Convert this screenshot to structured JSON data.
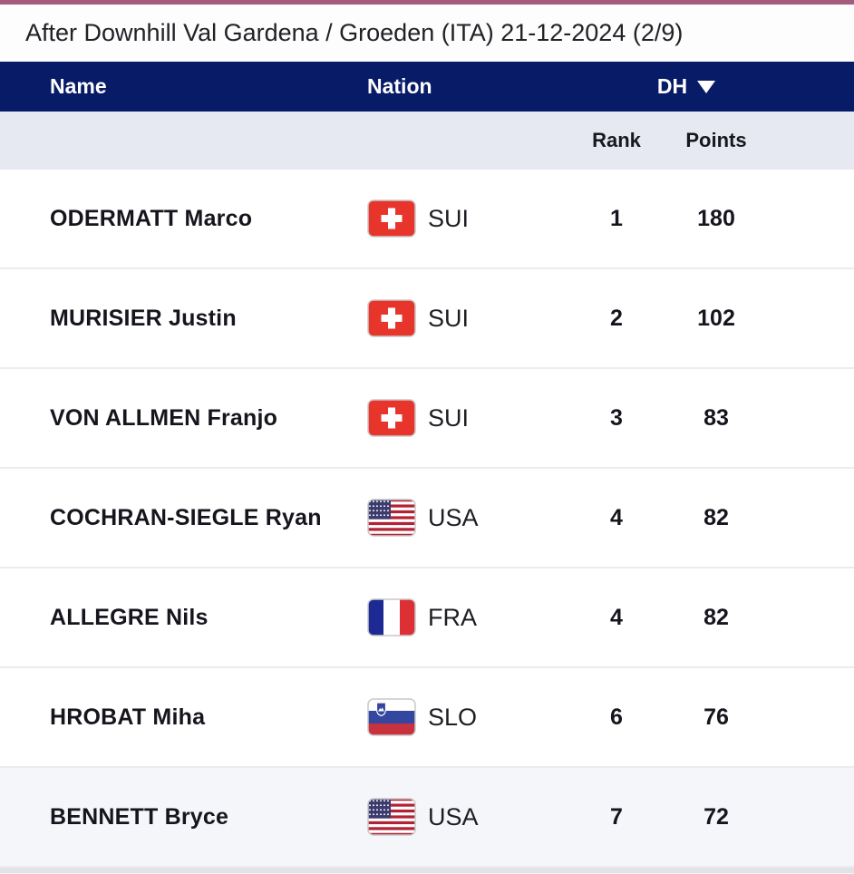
{
  "colors": {
    "accent_bar": "#a55b7b",
    "header_bg": "#081b67",
    "header_text": "#ffffff",
    "subheader_bg": "#e6e8f2",
    "row_border": "#ececee",
    "highlight_row_bg": "#f5f6fa",
    "text_dark": "#15151d",
    "title_bg": "#fdfdfd",
    "bottom_strip": "#e1e3e7",
    "bottom_strip_light": "#f3f4f6",
    "flag_border": "#c9c9c9",
    "sui_red": "#e8352b",
    "usa_stripe_red": "#b22234",
    "usa_canton_blue": "#3c3b6e",
    "fra_blue": "#1e2a93",
    "fra_red": "#dd3034",
    "slo_blue": "#3447a0",
    "slo_red": "#c8313e"
  },
  "title": "After Downhill Val Gardena / Groeden (ITA) 21-12-2024 (2/9)",
  "table": {
    "columns": {
      "name": "Name",
      "nation": "Nation",
      "dh": "DH"
    },
    "sort_icon": "triangle-down",
    "subcolumns": {
      "rank": "Rank",
      "points": "Points"
    },
    "rows": [
      {
        "name": "ODERMATT Marco",
        "nation": "SUI",
        "flag_icon": "flag-sui",
        "rank": "1",
        "points": "180",
        "highlighted": false
      },
      {
        "name": "MURISIER Justin",
        "nation": "SUI",
        "flag_icon": "flag-sui",
        "rank": "2",
        "points": "102",
        "highlighted": false
      },
      {
        "name": "VON ALLMEN Franjo",
        "nation": "SUI",
        "flag_icon": "flag-sui",
        "rank": "3",
        "points": "83",
        "highlighted": false
      },
      {
        "name": "COCHRAN-SIEGLE Ryan",
        "nation": "USA",
        "flag_icon": "flag-usa",
        "rank": "4",
        "points": "82",
        "highlighted": false
      },
      {
        "name": "ALLEGRE Nils",
        "nation": "FRA",
        "flag_icon": "flag-fra",
        "rank": "4",
        "points": "82",
        "highlighted": false
      },
      {
        "name": "HROBAT Miha",
        "nation": "SLO",
        "flag_icon": "flag-slo",
        "rank": "6",
        "points": "76",
        "highlighted": false
      },
      {
        "name": "BENNETT Bryce",
        "nation": "USA",
        "flag_icon": "flag-usa",
        "rank": "7",
        "points": "72",
        "highlighted": true
      }
    ]
  }
}
